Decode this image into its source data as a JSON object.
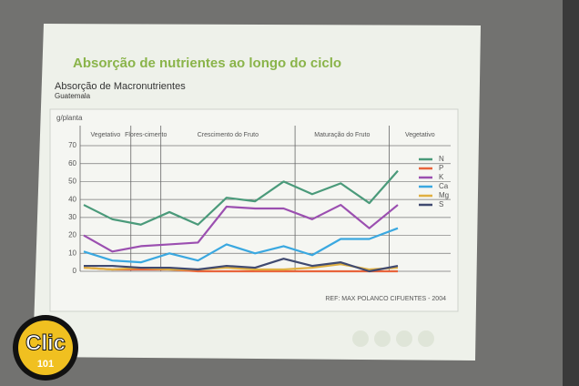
{
  "chart_data": {
    "type": "line",
    "title": "Absorção de nutrientes ao longo do ciclo",
    "subtitle": "Absorção de Macronutrientes",
    "region": "Guatemala",
    "y_label": "g/planta",
    "source": "REF: MAX POLANCO CIFUENTES - 2004",
    "phases": [
      "Vegetativo",
      "Flores-cimento",
      "Crescimento do Fruto",
      "Maturação do Fruto",
      "Vegetativo"
    ],
    "categories": [
      null,
      null,
      null,
      null,
      null,
      null,
      null,
      null,
      null,
      null,
      null,
      null
    ],
    "series": [
      {
        "name": "N",
        "color": "#4a9a7a",
        "values": [
          37,
          29,
          26,
          33,
          26,
          41,
          39,
          50,
          43,
          49,
          38,
          56
        ]
      },
      {
        "name": "P",
        "color": "#e8643c",
        "values": [
          2,
          1,
          1,
          1,
          0,
          0,
          0,
          0,
          0,
          0,
          0,
          0
        ]
      },
      {
        "name": "K",
        "color": "#9b4fb0",
        "values": [
          20,
          11,
          14,
          15,
          16,
          36,
          35,
          35,
          29,
          37,
          24,
          37
        ]
      },
      {
        "name": "Ca",
        "color": "#3aa8e0",
        "values": [
          11,
          6,
          5,
          10,
          6,
          15,
          10,
          14,
          9,
          18,
          18,
          24
        ]
      },
      {
        "name": "Mg",
        "color": "#e0b040",
        "values": [
          2,
          1,
          2,
          1,
          1,
          2,
          1,
          1,
          2,
          4,
          1,
          2
        ]
      },
      {
        "name": "S",
        "color": "#404a70",
        "values": [
          3,
          3,
          2,
          2,
          1,
          3,
          2,
          7,
          3,
          5,
          0,
          3
        ]
      }
    ],
    "ylim": [
      0,
      70
    ],
    "yticks": [
      0,
      10,
      20,
      30,
      40,
      50,
      60,
      70
    ],
    "grid": true
  },
  "watermark": {
    "name": "Clic",
    "number": "101"
  }
}
